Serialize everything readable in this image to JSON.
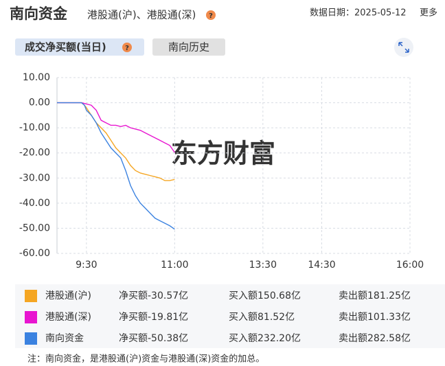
{
  "header": {
    "title": "南向资金",
    "subtitle": "港股通(沪)、港股通(深)",
    "date_label": "数据日期：2025-05-12",
    "more": "更多"
  },
  "tabs": [
    "成交净买额(当日)",
    "南向历史"
  ],
  "watermark": "东方财富",
  "chart_data": {
    "type": "line",
    "x": [
      0,
      25,
      28,
      30,
      35,
      40,
      45,
      50,
      55,
      60,
      65,
      70,
      75,
      80,
      85,
      90,
      95,
      100,
      105,
      110,
      115,
      120
    ],
    "series": [
      {
        "name": "港股通(沪)",
        "color": "#f5a623",
        "values": [
          0,
          0,
          -1,
          -2,
          -5,
          -8,
          -10,
          -12,
          -15,
          -18,
          -20,
          -22,
          -25,
          -27,
          -28,
          -28.5,
          -29,
          -29.5,
          -30,
          -31,
          -31,
          -30.57
        ]
      },
      {
        "name": "港股通(深)",
        "color": "#e815d0",
        "values": [
          0,
          0,
          -0.3,
          -0.5,
          -1,
          -3,
          -7,
          -8,
          -9,
          -9,
          -9.5,
          -9,
          -10,
          -10.5,
          -11,
          -12,
          -13,
          -14,
          -15,
          -16,
          -17,
          -19.81
        ]
      },
      {
        "name": "南向资金",
        "color": "#3b82e0",
        "values": [
          0,
          0,
          -1,
          -3,
          -5,
          -8,
          -12,
          -15,
          -18,
          -20,
          -22,
          -27,
          -33,
          -37,
          -40,
          -42,
          -44,
          -46,
          -47,
          -48,
          -49,
          -50.38
        ]
      }
    ],
    "xlim": [
      0,
      360
    ],
    "xticks": [
      {
        "value": 30,
        "label": "9:30"
      },
      {
        "value": 120,
        "label": "11:00"
      },
      {
        "value": 210,
        "label": "13:30"
      },
      {
        "value": 270,
        "label": "14:30"
      },
      {
        "value": 360,
        "label": "16:00"
      }
    ],
    "ylim": [
      -60,
      10
    ],
    "yticks": [
      {
        "value": 10,
        "label": "10.00"
      },
      {
        "value": 0,
        "label": "0.00"
      },
      {
        "value": -10,
        "label": "-10.00"
      },
      {
        "value": -20,
        "label": "-20.00"
      },
      {
        "value": -30,
        "label": "-30.00"
      },
      {
        "value": -40,
        "label": "-40.00"
      },
      {
        "value": -50,
        "label": "-50.00"
      },
      {
        "value": -60,
        "label": "-60.00"
      }
    ],
    "grid": true
  },
  "summary": {
    "net_label": "净买额",
    "buy_label": "买入额",
    "sell_label": "卖出额",
    "rows": [
      {
        "net": "-30.57亿",
        "buy": "150.68亿",
        "sell": "181.25亿"
      },
      {
        "net": "-19.81亿",
        "buy": "81.52亿",
        "sell": "101.33亿"
      },
      {
        "net": "-50.38亿",
        "buy": "232.20亿",
        "sell": "282.58亿"
      }
    ]
  },
  "note": "注：南向资金，是港股通(沪)资金与港股通(深)资金的加总。"
}
